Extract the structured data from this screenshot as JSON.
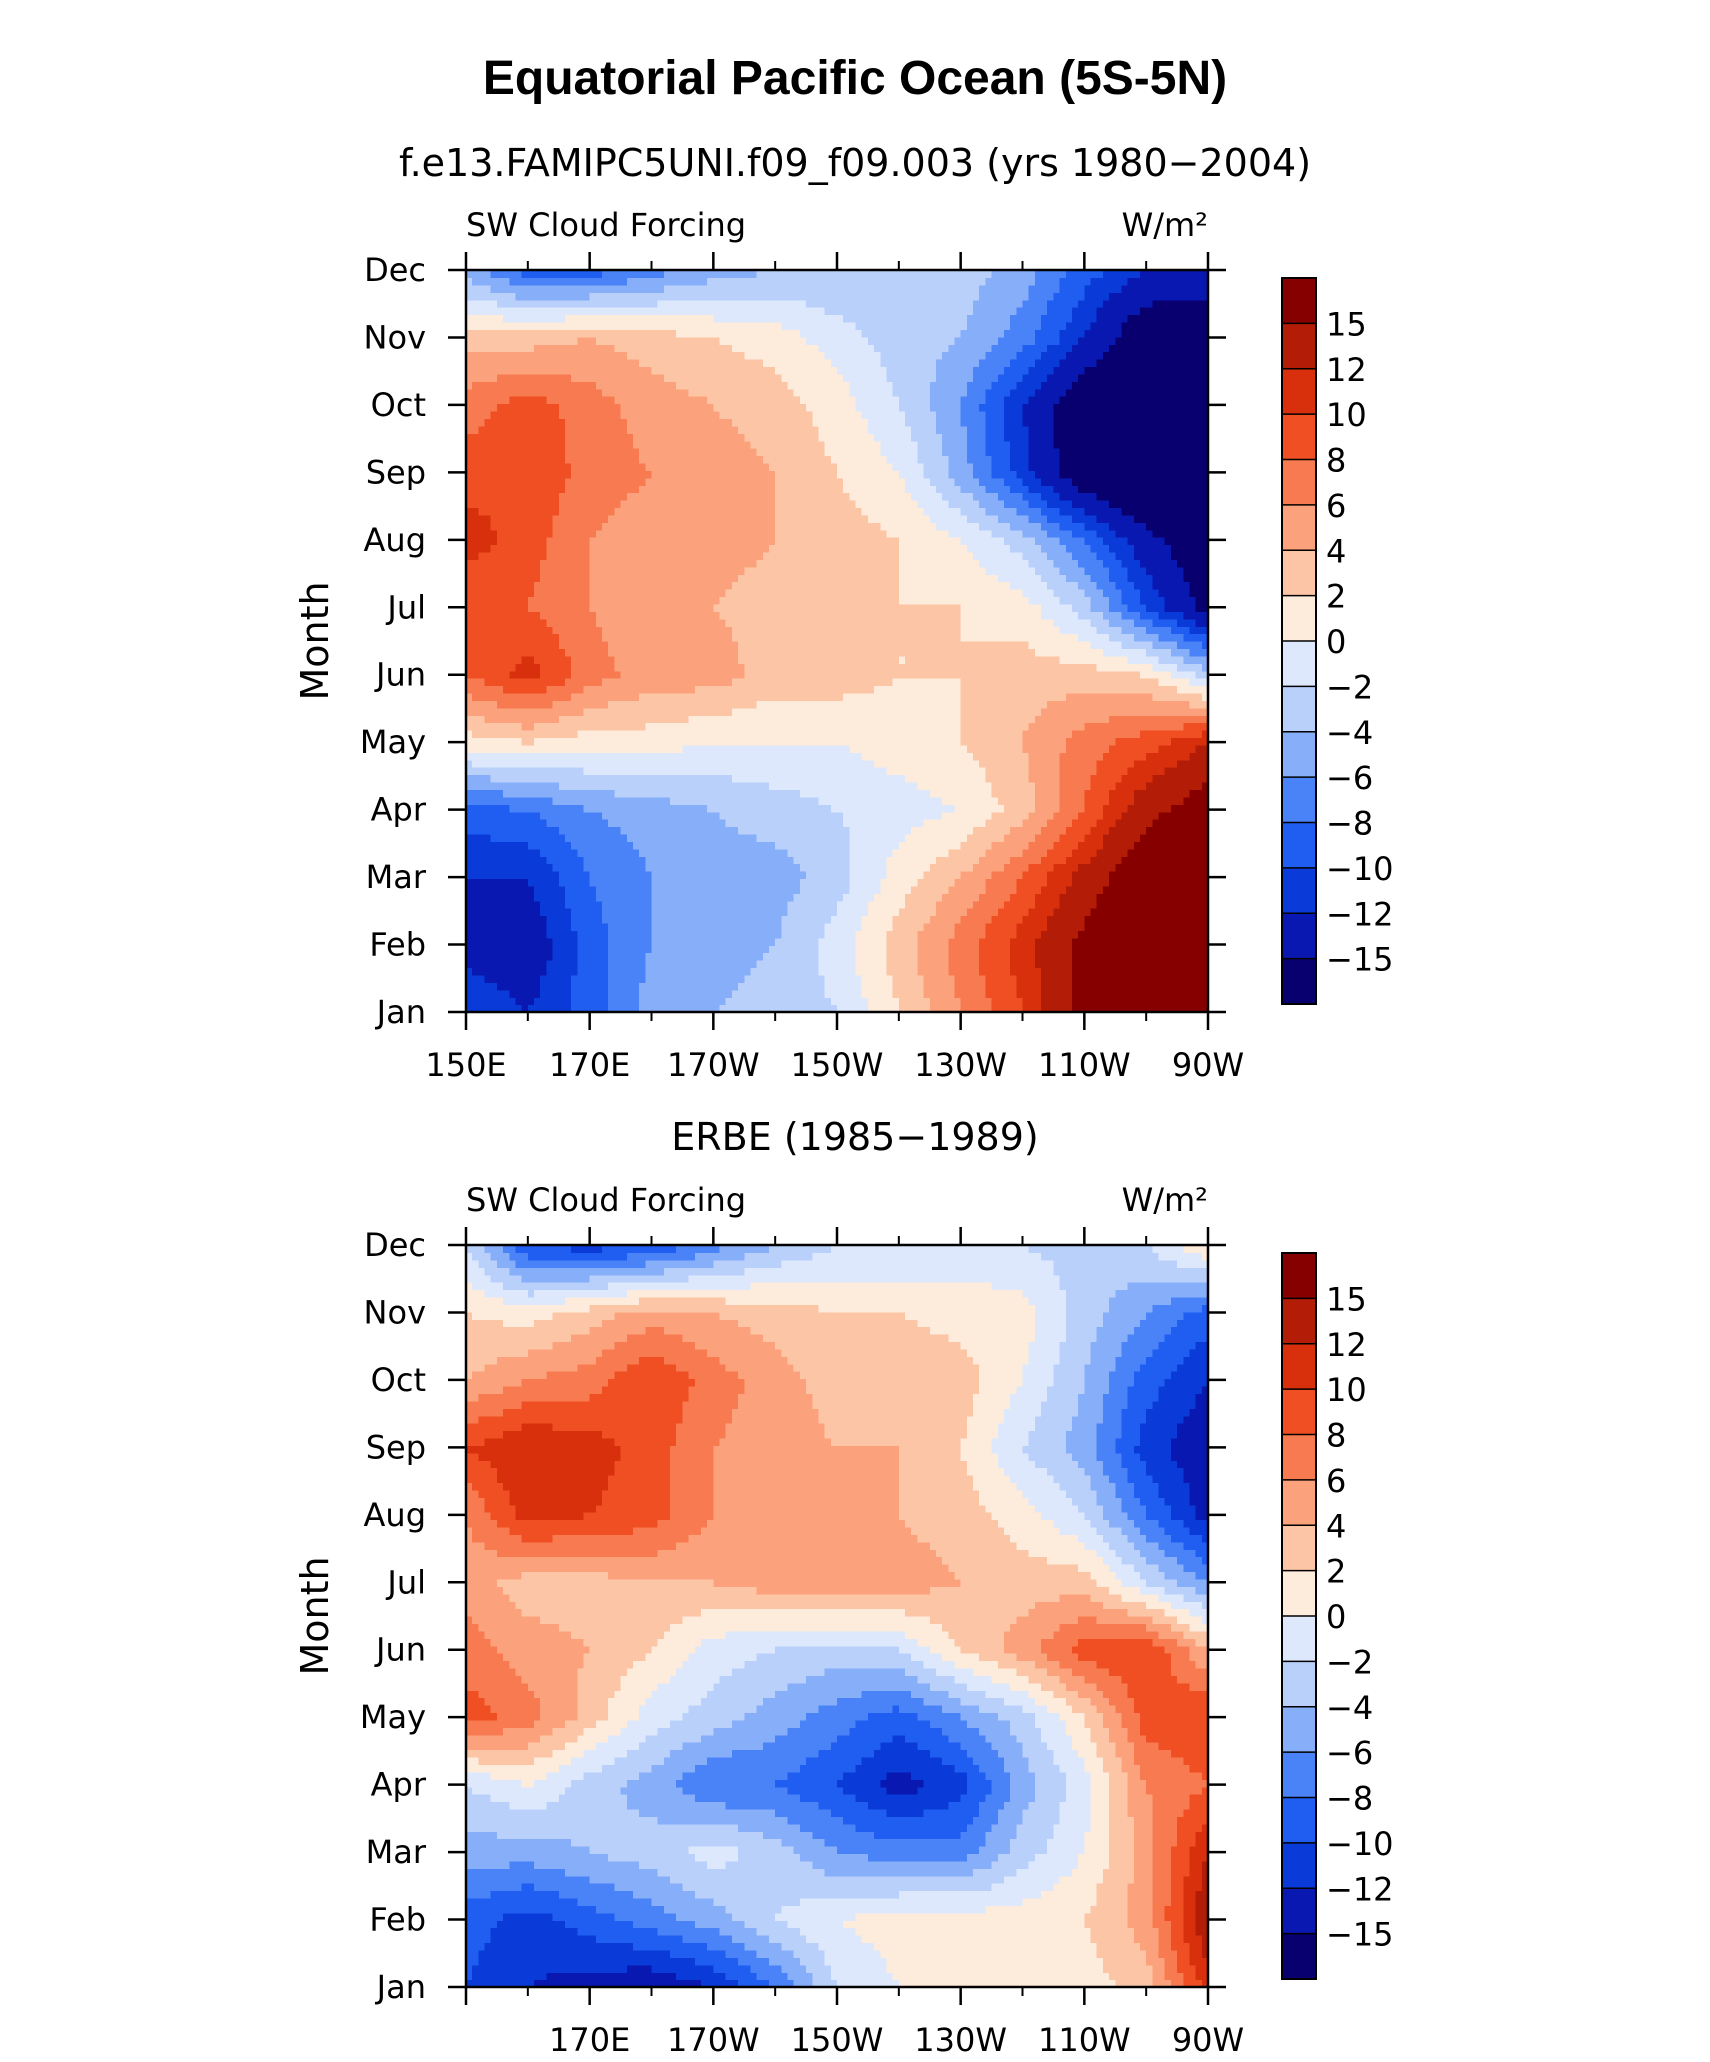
{
  "figure": {
    "title": "Equatorial Pacific Ocean (5S-5N)"
  },
  "colors": {
    "palette": [
      "#08006f",
      "#0818b0",
      "#0a3ad8",
      "#1f5ef0",
      "#4a82f7",
      "#86aef9",
      "#b9d0fb",
      "#dde8fd",
      "#fdebdc",
      "#fcc6a6",
      "#fba27c",
      "#f87a50",
      "#ef4f22",
      "#d8300d",
      "#b31c06",
      "#870000"
    ]
  },
  "chart_data": [
    {
      "type": "heatmap",
      "subtitle": "f.e13.FAMIPC5UNI.f09_f09.003 (yrs 1980−2004)",
      "left_label": "SW Cloud Forcing",
      "right_label": "W/m²",
      "ylabel": "Month",
      "xlabel": "",
      "x_ticks": [
        "150E",
        "170E",
        "170W",
        "150W",
        "130W",
        "110W",
        "90W"
      ],
      "y_ticks": [
        "Jan",
        "Feb",
        "Mar",
        "Apr",
        "May",
        "Jun",
        "Jul",
        "Aug",
        "Sep",
        "Oct",
        "Nov",
        "Dec"
      ],
      "xlim": [
        150,
        270
      ],
      "ylim": [
        0,
        11
      ],
      "colorbar_levels": [
        "−15",
        "−12",
        "−10",
        "−8",
        "−6",
        "−4",
        "−2",
        "0",
        "2",
        "4",
        "6",
        "8",
        "10",
        "12",
        "15"
      ],
      "lon": [
        150,
        160,
        170,
        180,
        190,
        200,
        210,
        220,
        230,
        240,
        250,
        260,
        270
      ],
      "months": [
        "Jan",
        "Feb",
        "Mar",
        "Apr",
        "May",
        "Jun",
        "Jul",
        "Aug",
        "Sep",
        "Oct",
        "Nov",
        "Dec"
      ],
      "z": [
        [
          -10,
          -12,
          -9,
          -5,
          -4,
          -3,
          -2,
          2,
          6,
          10,
          16,
          20,
          22
        ],
        [
          -13,
          -14,
          -9,
          -6,
          -5,
          -4,
          -1,
          3,
          7,
          11,
          16,
          20,
          22
        ],
        [
          -12,
          -12,
          -8,
          -6,
          -5,
          -5,
          -3,
          1,
          4,
          8,
          13,
          18,
          20
        ],
        [
          -9,
          -8,
          -6,
          -5,
          -4,
          -3,
          -2,
          -1,
          0,
          3,
          8,
          14,
          17
        ],
        [
          1,
          2,
          1,
          1,
          0,
          0,
          0,
          1,
          2,
          4,
          7,
          9,
          12
        ],
        [
          8,
          11,
          7,
          5,
          5,
          3,
          3,
          2,
          2,
          3,
          3,
          2,
          -3
        ],
        [
          8,
          8,
          6,
          4,
          4,
          3,
          3,
          2,
          2,
          1,
          -3,
          -10,
          -16
        ],
        [
          11,
          9,
          6,
          5,
          5,
          4,
          3,
          2,
          0,
          -3,
          -8,
          -14,
          -18
        ],
        [
          9,
          10,
          7,
          6,
          5,
          4,
          2,
          0,
          -5,
          -11,
          -18,
          -20,
          -20
        ],
        [
          7,
          9,
          7,
          5,
          4,
          3,
          1,
          -2,
          -6,
          -12,
          -18,
          -20,
          -20
        ],
        [
          3,
          3,
          4,
          3,
          2,
          1,
          -1,
          -3,
          -4,
          -7,
          -12,
          -18,
          -18
        ],
        [
          -5,
          -9,
          -9,
          -7,
          -5,
          -4,
          -4,
          -3,
          -3,
          -5,
          -9,
          -12,
          -13
        ]
      ]
    },
    {
      "type": "heatmap",
      "subtitle": "ERBE (1985−1989)",
      "left_label": "SW Cloud Forcing",
      "right_label": "W/m²",
      "ylabel": "Month",
      "xlabel": "",
      "x_ticks": [
        "170E",
        "170W",
        "150W",
        "130W",
        "110W",
        "90W"
      ],
      "y_ticks": [
        "Jan",
        "Feb",
        "Mar",
        "Apr",
        "May",
        "Jun",
        "Jul",
        "Aug",
        "Sep",
        "Oct",
        "Nov",
        "Dec"
      ],
      "xlim": [
        150,
        270
      ],
      "ylim": [
        0,
        11
      ],
      "colorbar_levels": [
        "−15",
        "−12",
        "−10",
        "−8",
        "−6",
        "−4",
        "−2",
        "0",
        "2",
        "4",
        "6",
        "8",
        "10",
        "12",
        "15"
      ],
      "lon": [
        150,
        160,
        170,
        180,
        190,
        200,
        210,
        220,
        230,
        240,
        250,
        260,
        270
      ],
      "months": [
        "Jan",
        "Feb",
        "Mar",
        "Apr",
        "May",
        "Jun",
        "Jul",
        "Aug",
        "Sep",
        "Oct",
        "Nov",
        "Dec"
      ],
      "z": [
        [
          -10,
          -12,
          -13,
          -14,
          -12,
          -8,
          -2,
          0,
          1,
          1,
          1,
          3,
          11
        ],
        [
          -9,
          -11,
          -9,
          -7,
          -5,
          -2,
          0,
          1,
          1,
          1,
          2,
          5,
          14
        ],
        [
          -5,
          -5,
          -4,
          -3,
          -1,
          -3,
          -6,
          -7,
          -7,
          -3,
          0,
          5,
          12
        ],
        [
          -2,
          0,
          -3,
          -5,
          -8,
          -8,
          -10,
          -13,
          -11,
          -5,
          -1,
          6,
          8
        ],
        [
          9,
          7,
          3,
          -1,
          -3,
          -5,
          -7,
          -9,
          -6,
          -3,
          2,
          9,
          10
        ],
        [
          7,
          5,
          4,
          2,
          -1,
          -2,
          -3,
          -2,
          2,
          5,
          9,
          10,
          4
        ],
        [
          5,
          3,
          3,
          4,
          4,
          5,
          6,
          5,
          4,
          3,
          3,
          -2,
          -6
        ],
        [
          6,
          11,
          10,
          9,
          6,
          5,
          5,
          4,
          3,
          1,
          -2,
          -8,
          -13
        ],
        [
          10,
          12,
          11,
          9,
          6,
          5,
          4,
          4,
          2,
          -2,
          -5,
          -11,
          -14
        ],
        [
          4,
          6,
          7,
          10,
          7,
          5,
          3,
          4,
          3,
          0,
          -4,
          -9,
          -12
        ],
        [
          2,
          1,
          3,
          5,
          4,
          3,
          2,
          2,
          1,
          1,
          -3,
          -6,
          -9
        ],
        [
          -2,
          -10,
          -11,
          -10,
          -7,
          -4,
          -2,
          -2,
          -1,
          -2,
          -3,
          -2,
          2
        ]
      ]
    }
  ]
}
